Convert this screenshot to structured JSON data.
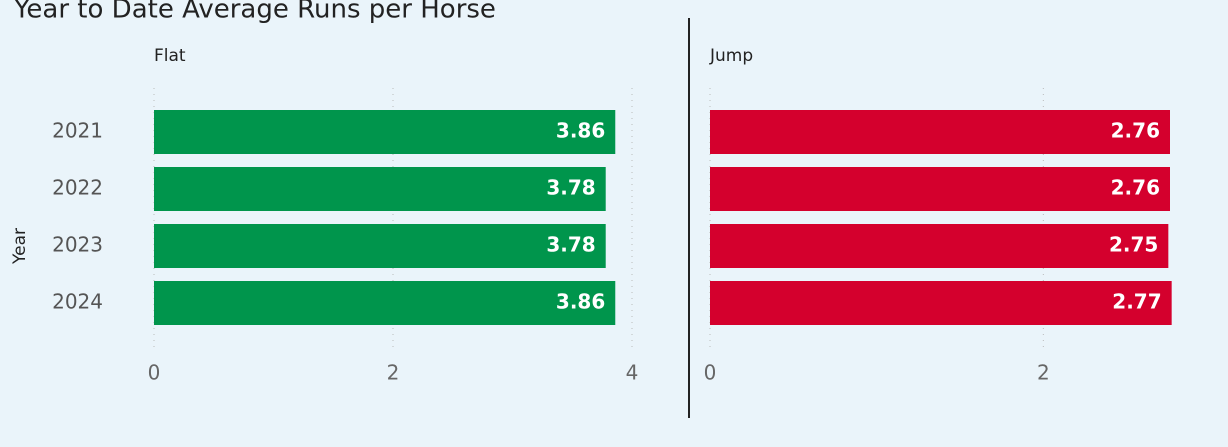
{
  "title": "Year to Date Average Runs per Horse",
  "y_axis_label": "Year",
  "categories": [
    "2021",
    "2022",
    "2023",
    "2024"
  ],
  "chart_data": [
    {
      "type": "bar",
      "title": "Flat",
      "values": [
        3.86,
        3.78,
        3.78,
        3.86
      ],
      "color": "#00954c",
      "xlim": [
        0,
        4
      ],
      "xticks": [
        0,
        2,
        4
      ],
      "grid": true
    },
    {
      "type": "bar",
      "title": "Jump",
      "values": [
        2.76,
        2.76,
        2.75,
        2.77
      ],
      "color": "#d4002d",
      "xlim": [
        0,
        2.88
      ],
      "xticks": [
        0,
        2
      ],
      "grid": true
    }
  ]
}
